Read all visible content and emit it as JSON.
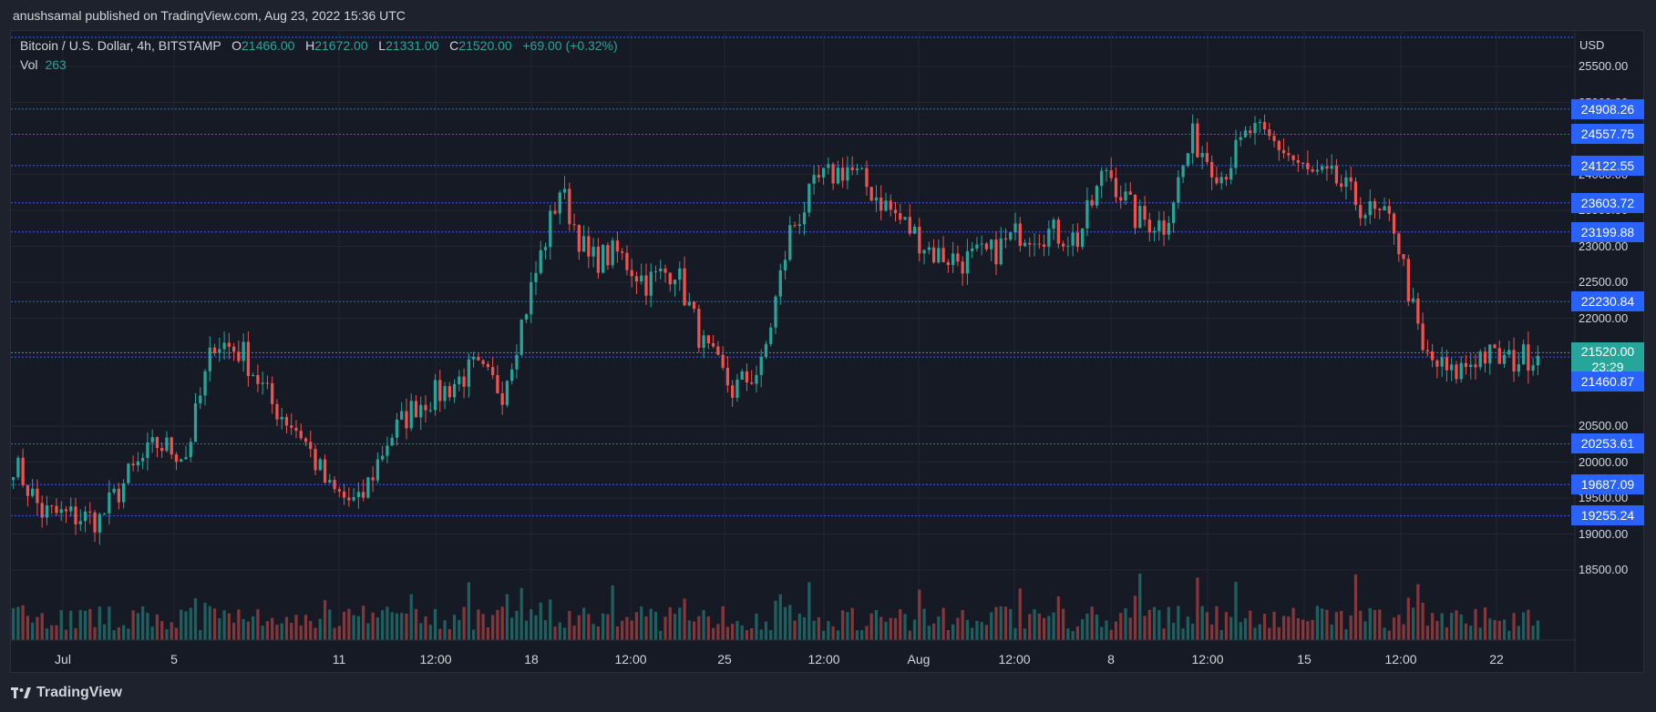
{
  "header": {
    "publisher_line": "anushsamal published on TradingView.com, Aug 23, 2022 15:36 UTC"
  },
  "legend": {
    "symbol": "Bitcoin / U.S. Dollar, 4h, BITSTAMP",
    "o_label": "O",
    "o_value": "21466.00",
    "h_label": "H",
    "h_value": "21672.00",
    "l_label": "L",
    "l_value": "21331.00",
    "c_label": "C",
    "c_value": "21520.00",
    "change": "+69.00 (+0.32%)",
    "vol_label": "Vol",
    "vol_value": "263"
  },
  "axis": {
    "currency": "USD",
    "y_ticks": [
      "25500.00",
      "25000.00",
      "24000.00",
      "23500.00",
      "23000.00",
      "22500.00",
      "22000.00",
      "20500.00",
      "20000.00",
      "19500.00",
      "19000.00",
      "18500.00"
    ],
    "x_ticks": [
      "Jul",
      "5",
      "11",
      "12:00",
      "18",
      "12:00",
      "25",
      "12:00",
      "Aug",
      "12:00",
      "8",
      "12:00",
      "15",
      "12:00",
      "22"
    ]
  },
  "price_labels": [
    {
      "value": "24908.26",
      "kind": "level"
    },
    {
      "value": "24557.75",
      "kind": "level"
    },
    {
      "value": "24122.55",
      "kind": "level"
    },
    {
      "value": "23603.72",
      "kind": "level"
    },
    {
      "value": "23199.88",
      "kind": "level"
    },
    {
      "value": "22230.84",
      "kind": "level"
    },
    {
      "value": "21520.00",
      "kind": "current",
      "countdown": "23:29"
    },
    {
      "value": "21460.87",
      "kind": "level"
    },
    {
      "value": "20253.61",
      "kind": "level"
    },
    {
      "value": "19687.09",
      "kind": "level"
    },
    {
      "value": "19255.24",
      "kind": "level"
    }
  ],
  "logo": {
    "text": "TradingView"
  },
  "colors": {
    "up": "#26a69a",
    "down": "#ef5350",
    "level_line": "#2962ff",
    "grid": "#232632"
  },
  "chart_data": {
    "type": "candlestick",
    "title": "Bitcoin / U.S. Dollar, 4h, BITSTAMP",
    "ylabel": "USD",
    "ylim": [
      17900,
      25800
    ],
    "horizontal_levels": [
      24908.26,
      24557.75,
      24122.55,
      23603.72,
      23199.88,
      22230.84,
      21520.0,
      21460.87,
      20253.61,
      19687.09,
      19255.24
    ],
    "close_path": [
      {
        "x": "Jul 1",
        "y": 20000
      },
      {
        "x": "Jul 2",
        "y": 19300
      },
      {
        "x": "Jul 3",
        "y": 19250
      },
      {
        "x": "Jul 4",
        "y": 19200
      },
      {
        "x": "Jul 5",
        "y": 19800
      },
      {
        "x": "Jul 6",
        "y": 20250
      },
      {
        "x": "Jul 7",
        "y": 20100
      },
      {
        "x": "Jul 8",
        "y": 21700
      },
      {
        "x": "Jul 9",
        "y": 21500
      },
      {
        "x": "Jul 10",
        "y": 20800
      },
      {
        "x": "Jul 11",
        "y": 20400
      },
      {
        "x": "Jul 12",
        "y": 19600
      },
      {
        "x": "Jul 13",
        "y": 19400
      },
      {
        "x": "Jul 14",
        "y": 20300
      },
      {
        "x": "Jul 15",
        "y": 20800
      },
      {
        "x": "Jul 16",
        "y": 21000
      },
      {
        "x": "Jul 17",
        "y": 21300
      },
      {
        "x": "Jul 18",
        "y": 21000
      },
      {
        "x": "Jul 19",
        "y": 22400
      },
      {
        "x": "Jul 20",
        "y": 23800
      },
      {
        "x": "Jul 21",
        "y": 22800
      },
      {
        "x": "Jul 22",
        "y": 22900
      },
      {
        "x": "Jul 23",
        "y": 22500
      },
      {
        "x": "Jul 24",
        "y": 22700
      },
      {
        "x": "Jul 25",
        "y": 21600
      },
      {
        "x": "Jul 26",
        "y": 21000
      },
      {
        "x": "Jul 27",
        "y": 21300
      },
      {
        "x": "Jul 28",
        "y": 23200
      },
      {
        "x": "Jul 29",
        "y": 23900
      },
      {
        "x": "Jul 30",
        "y": 24100
      },
      {
        "x": "Jul 31",
        "y": 23700
      },
      {
        "x": "Aug 1",
        "y": 23300
      },
      {
        "x": "Aug 2",
        "y": 22900
      },
      {
        "x": "Aug 3",
        "y": 22800
      },
      {
        "x": "Aug 4",
        "y": 22900
      },
      {
        "x": "Aug 5",
        "y": 23200
      },
      {
        "x": "Aug 6",
        "y": 23200
      },
      {
        "x": "Aug 7",
        "y": 23100
      },
      {
        "x": "Aug 8",
        "y": 24100
      },
      {
        "x": "Aug 9",
        "y": 23400
      },
      {
        "x": "Aug 10",
        "y": 23300
      },
      {
        "x": "Aug 11",
        "y": 24500
      },
      {
        "x": "Aug 12",
        "y": 24000
      },
      {
        "x": "Aug 13",
        "y": 24600
      },
      {
        "x": "Aug 14",
        "y": 24400
      },
      {
        "x": "Aug 15",
        "y": 24000
      },
      {
        "x": "Aug 16",
        "y": 23900
      },
      {
        "x": "Aug 17",
        "y": 23500
      },
      {
        "x": "Aug 18",
        "y": 23300
      },
      {
        "x": "Aug 19",
        "y": 21500
      },
      {
        "x": "Aug 20",
        "y": 21200
      },
      {
        "x": "Aug 21",
        "y": 21500
      },
      {
        "x": "Aug 22",
        "y": 21400
      },
      {
        "x": "Aug 23",
        "y": 21520
      }
    ]
  }
}
